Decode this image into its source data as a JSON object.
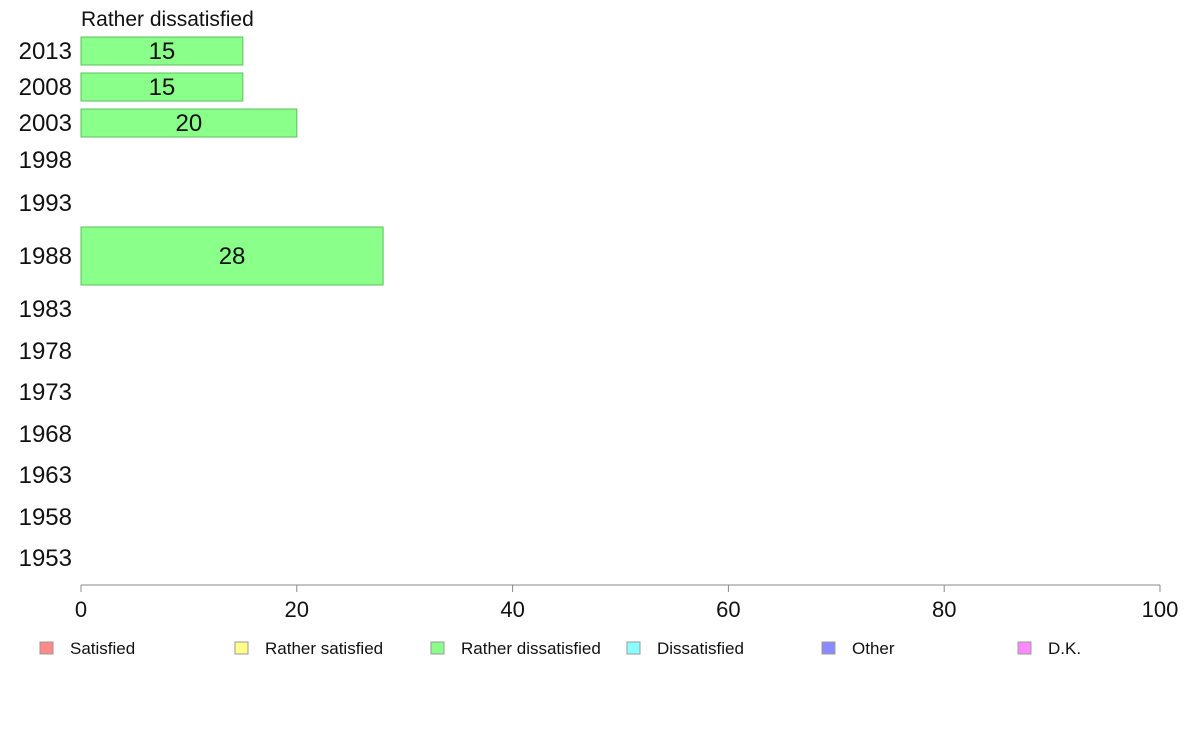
{
  "chart_data": {
    "type": "bar",
    "orientation": "horizontal",
    "title": "Rather dissatisfied",
    "categories": [
      "2013",
      "2008",
      "2003",
      "1998",
      "1993",
      "1988",
      "1983",
      "1978",
      "1973",
      "1968",
      "1963",
      "1958",
      "1953"
    ],
    "series": [
      {
        "name": "Rather dissatisfied",
        "values": [
          15,
          15,
          20,
          null,
          null,
          28,
          null,
          null,
          null,
          null,
          null,
          null,
          null
        ]
      }
    ],
    "xlim": [
      0,
      100
    ],
    "xticks": [
      0,
      20,
      40,
      60,
      80,
      100
    ],
    "grid": false,
    "legend_position": "bottom",
    "legend": [
      {
        "label": "Satisfied",
        "color": "#ff8a8a"
      },
      {
        "label": "Rather satisfied",
        "color": "#ffff8a"
      },
      {
        "label": "Rather dissatisfied",
        "color": "#8aff8a"
      },
      {
        "label": "Dissatisfied",
        "color": "#8affff"
      },
      {
        "label": "Other",
        "color": "#8a8aff"
      },
      {
        "label": "D.K.",
        "color": "#ff8aff"
      }
    ],
    "bar_color": "#8aff8a",
    "bar_stroke": "#5cc05c"
  }
}
